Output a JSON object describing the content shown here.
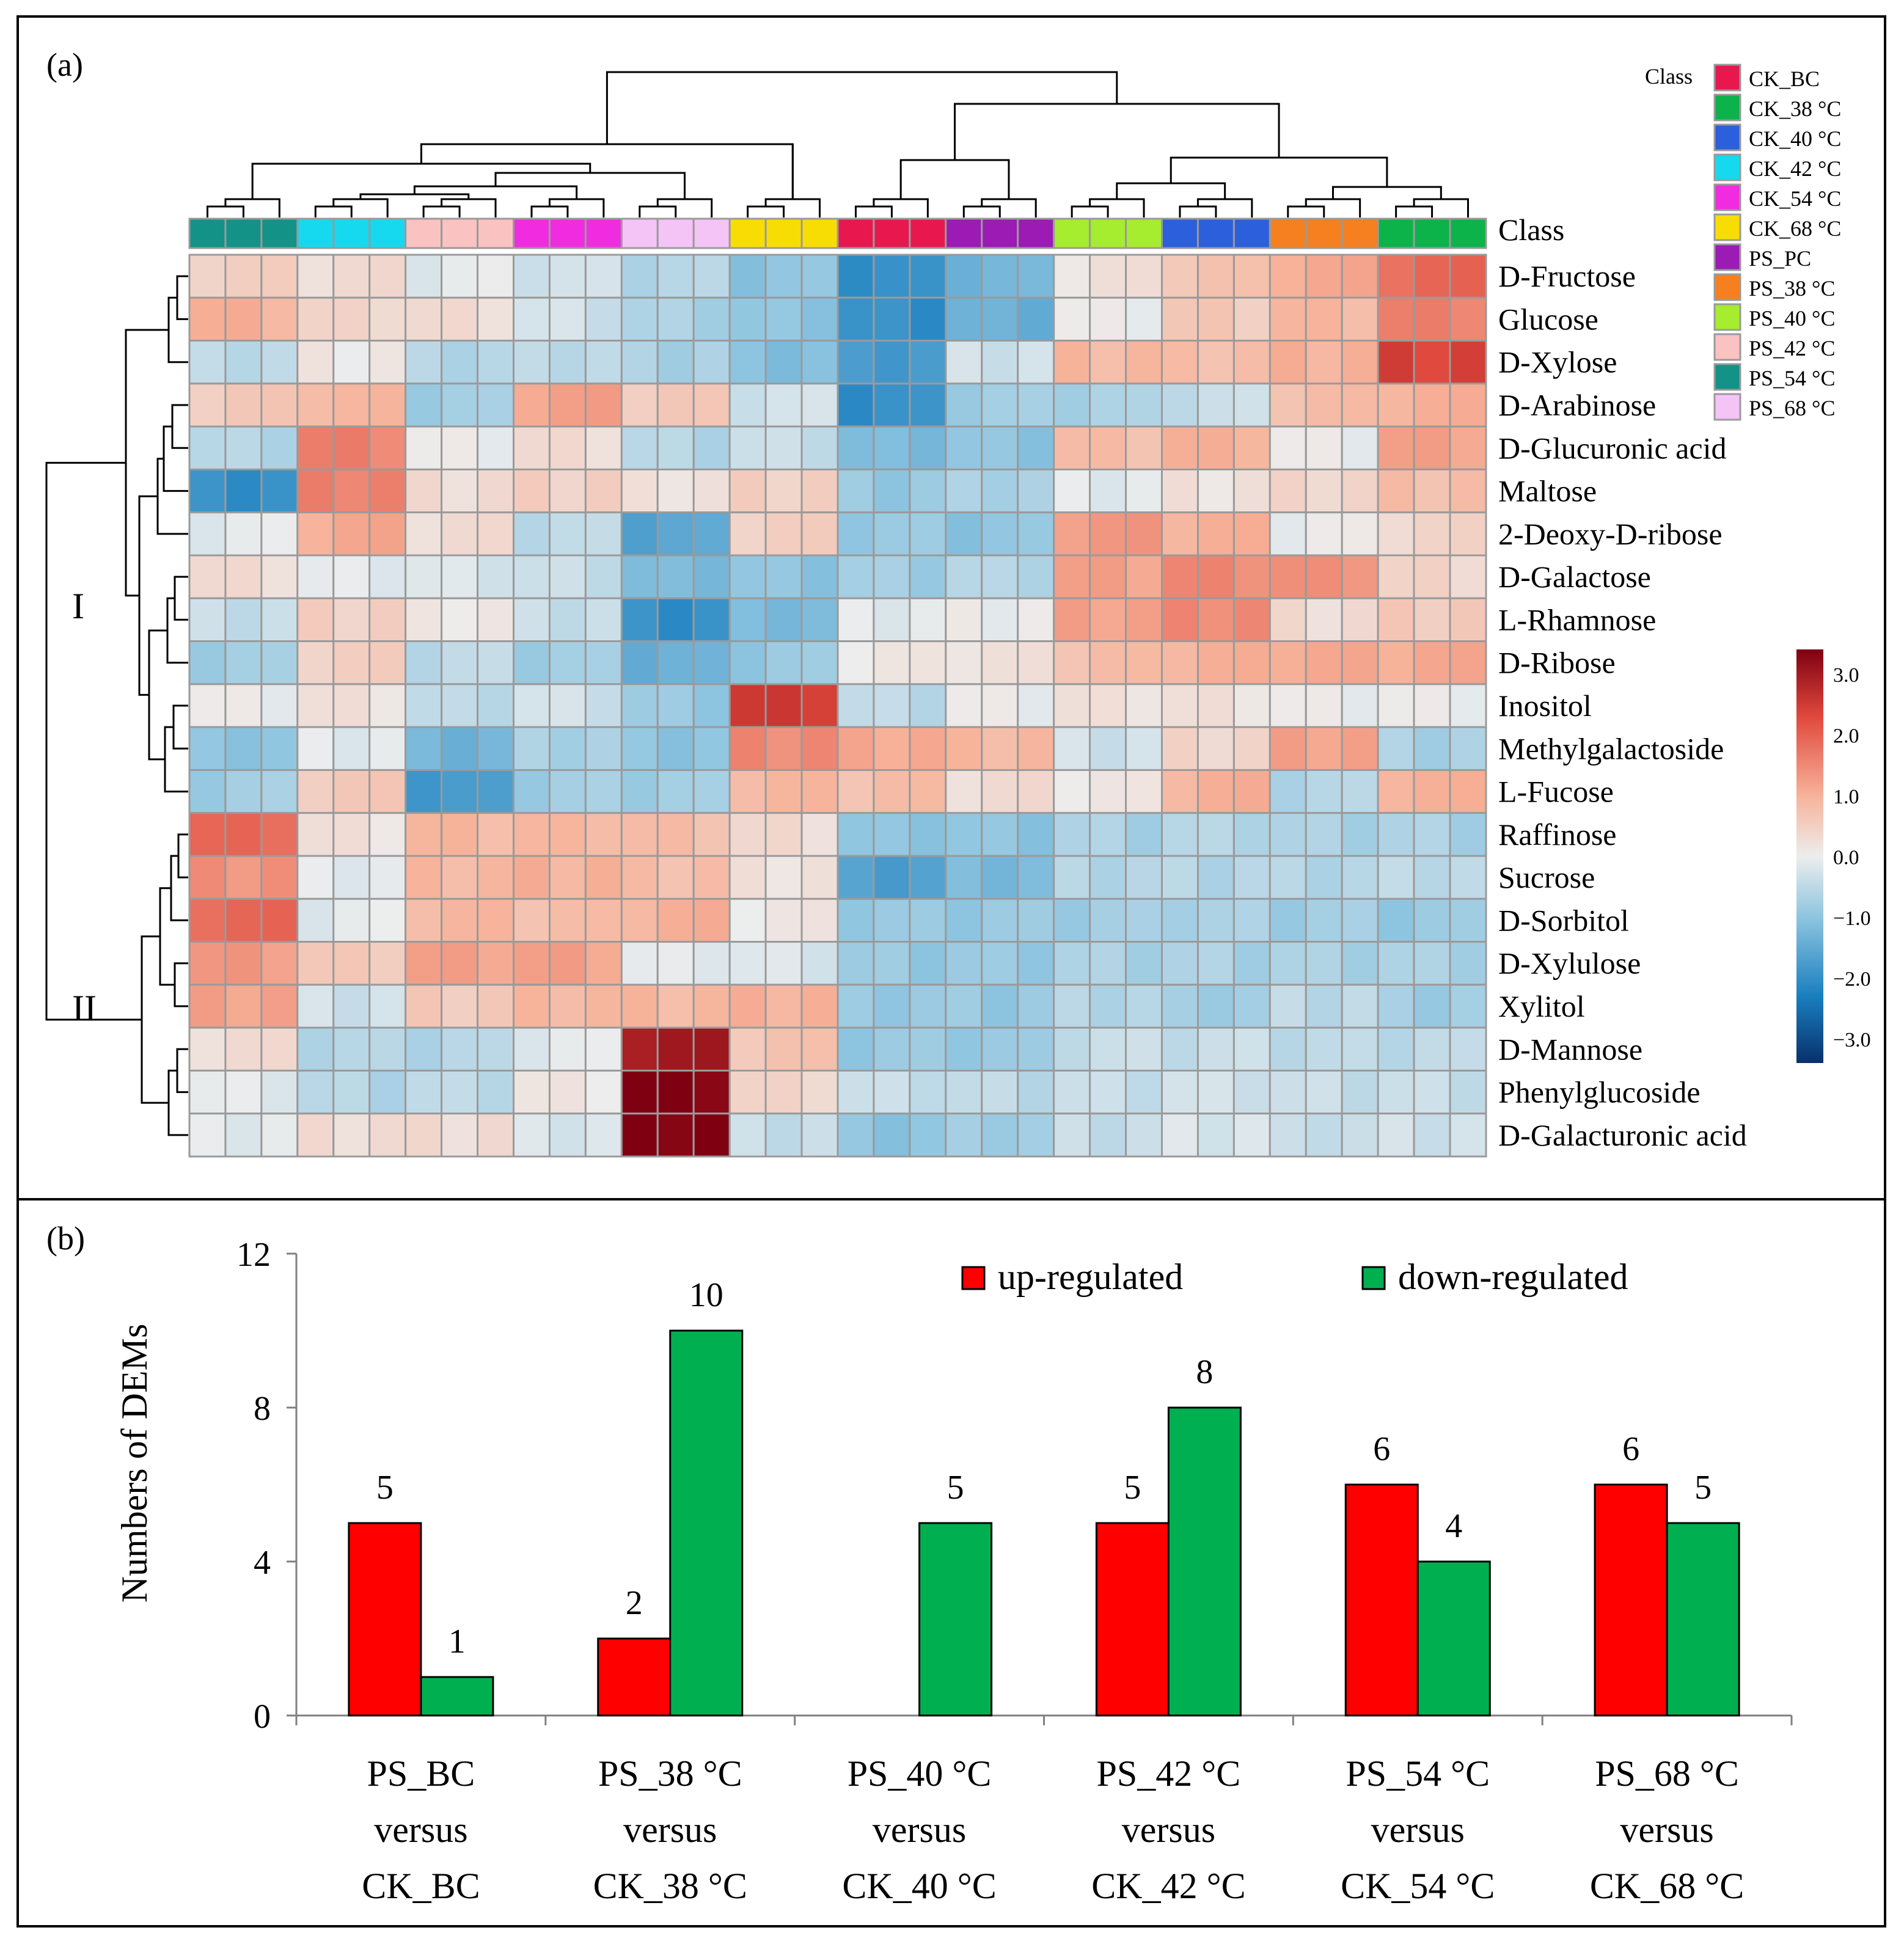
{
  "chart_data": [
    {
      "type": "heatmap",
      "panel_label": "(a)",
      "class_header": "Class",
      "row_labels": [
        "D-Fructose",
        "Glucose",
        "D-Xylose",
        "D-Arabinose",
        "D-Glucuronic acid",
        "Maltose",
        "2-Deoxy-D-ribose",
        "D-Galactose",
        "L-Rhamnose",
        "D-Ribose",
        "Inositol",
        "Methylgalactoside",
        "L-Fucose",
        "Raffinose",
        "Sucrose",
        "D-Sorbitol",
        "D-Xylulose",
        "Xylitol",
        "D-Mannose",
        "Phenylglucoside",
        "D-Galacturonic acid"
      ],
      "column_groups": [
        "PS_54 °C",
        "CK_42 °C",
        "PS_42 °C",
        "CK_54 °C",
        "PS_68 °C",
        "CK_68 °C",
        "CK_BC",
        "PS_PC",
        "PS_40 °C",
        "CK_40 °C",
        "PS_38 °C",
        "CK_38 °C"
      ],
      "group_summary_values": [
        [
          0.5,
          1.0,
          -0.5,
          0.6,
          -0.6,
          -2.0,
          -0.1,
          0.3,
          -0.4,
          -0.8,
          0.0,
          -1.0,
          -0.8,
          1.9,
          1.4,
          1.9,
          1.3,
          1.2,
          0.3,
          -0.1,
          -0.1
        ],
        [
          0.3,
          0.4,
          0.1,
          0.9,
          1.6,
          1.6,
          1.1,
          -0.1,
          0.5,
          0.5,
          0.2,
          -0.1,
          0.6,
          0.2,
          -0.1,
          -0.1,
          0.6,
          -0.3,
          -0.6,
          -0.6,
          0.3
        ],
        [
          -0.1,
          0.3,
          -0.6,
          -0.8,
          0.0,
          0.3,
          0.3,
          -0.2,
          0.1,
          -0.5,
          -0.5,
          -1.3,
          -1.8,
          0.9,
          0.9,
          0.9,
          1.2,
          0.6,
          -0.6,
          -0.5,
          0.3
        ],
        [
          -0.3,
          -0.3,
          -0.5,
          1.2,
          0.3,
          0.5,
          -0.5,
          -0.4,
          -0.4,
          -0.8,
          -0.3,
          -0.7,
          -0.8,
          0.9,
          1.0,
          0.8,
          1.2,
          0.9,
          -0.1,
          0.1,
          -0.2
        ],
        [
          -0.6,
          -0.7,
          -0.7,
          0.6,
          -0.6,
          0.2,
          -1.6,
          -1.2,
          -2.0,
          -1.4,
          -0.9,
          -1.0,
          -0.8,
          0.8,
          0.8,
          1.0,
          -0.1,
          0.9,
          3.0,
          3.4,
          3.4
        ],
        [
          -1.0,
          -1.0,
          -1.1,
          -0.3,
          -0.4,
          0.5,
          0.5,
          -1.0,
          -1.2,
          -0.9,
          2.5,
          1.5,
          0.9,
          0.3,
          0.2,
          0.1,
          -0.2,
          1.0,
          0.7,
          0.4,
          -0.4
        ],
        [
          -2.0,
          -2.0,
          -1.8,
          -2.0,
          -1.2,
          -0.9,
          -0.9,
          -0.8,
          -0.1,
          0.1,
          -0.5,
          1.1,
          0.8,
          -1.0,
          -1.7,
          -0.9,
          -0.9,
          -0.9,
          -0.9,
          -0.4,
          -1.0
        ],
        [
          -1.3,
          -1.4,
          -0.3,
          -0.8,
          -1.0,
          -0.7,
          -1.0,
          -0.6,
          0.0,
          0.2,
          0.0,
          0.9,
          0.3,
          -1.0,
          -1.2,
          -0.9,
          -0.9,
          -0.9,
          -0.9,
          -0.5,
          -0.8
        ],
        [
          0.2,
          0.0,
          0.9,
          -0.7,
          0.8,
          -0.1,
          1.3,
          1.2,
          1.2,
          0.8,
          0.2,
          -0.3,
          0.1,
          -0.7,
          -0.6,
          -0.8,
          -0.7,
          -0.6,
          -0.4,
          -0.4,
          -0.4
        ],
        [
          0.7,
          0.6,
          0.8,
          -0.4,
          1.0,
          0.2,
          1.0,
          1.5,
          1.5,
          1.0,
          0.2,
          0.4,
          1.0,
          -0.6,
          -0.6,
          -0.7,
          -0.7,
          -0.8,
          -0.4,
          -0.3,
          -0.2
        ],
        [
          1.1,
          0.9,
          1.0,
          0.8,
          0.0,
          0.4,
          0.0,
          1.4,
          0.3,
          1.1,
          0.0,
          1.2,
          -0.6,
          -0.7,
          -0.6,
          -0.8,
          -0.7,
          -0.5,
          -0.5,
          -0.4,
          -0.4
        ],
        [
          1.9,
          1.6,
          2.4,
          1.0,
          1.2,
          0.8,
          0.4,
          0.4,
          0.6,
          1.1,
          0.0,
          -0.7,
          1.0,
          -0.7,
          -0.5,
          -0.9,
          -0.7,
          -0.8,
          -0.5,
          -0.4,
          -0.3
        ]
      ],
      "row_clusters": [
        "I",
        "II"
      ],
      "legend": {
        "title": "Class",
        "items": [
          {
            "label": "CK_BC",
            "color": "#e8184e"
          },
          {
            "label": "CK_38 °C",
            "color": "#0cb34a"
          },
          {
            "label": "CK_40 °C",
            "color": "#2c5fdc"
          },
          {
            "label": "CK_42 °C",
            "color": "#16d9ef"
          },
          {
            "label": "CK_54 °C",
            "color": "#f12ce0"
          },
          {
            "label": "CK_68 °C",
            "color": "#f8dd05"
          },
          {
            "label": "PS_PC",
            "color": "#9b1bb4"
          },
          {
            "label": "PS_38 °C",
            "color": "#f6801f"
          },
          {
            "label": "PS_40 °C",
            "color": "#a6ec2f"
          },
          {
            "label": "PS_42 °C",
            "color": "#fbc2c2"
          },
          {
            "label": "PS_54 °C",
            "color": "#139287"
          },
          {
            "label": "PS_68 °C",
            "color": "#f5c4f7"
          }
        ]
      },
      "color_scale": {
        "range": [
          -3.4,
          3.4
        ],
        "ticks": [
          "3.0",
          "2.0",
          "1.0",
          "0.0",
          "−1.0",
          "−2.0",
          "−3.0"
        ],
        "tick_values": [
          3,
          2,
          1,
          0,
          -1,
          -2,
          -3
        ],
        "stops": [
          {
            "v": -3.4,
            "color": "#08306b"
          },
          {
            "v": -2.3,
            "color": "#1a7fbf"
          },
          {
            "v": -1.0,
            "color": "#8ec5e0"
          },
          {
            "v": 0,
            "color": "#ededed"
          },
          {
            "v": 1.0,
            "color": "#f7b299"
          },
          {
            "v": 2.3,
            "color": "#e0483c"
          },
          {
            "v": 3.4,
            "color": "#7f0011"
          }
        ]
      }
    },
    {
      "type": "bar",
      "panel_label": "(b)",
      "ylabel": "Numbers of DEMs",
      "ylim": [
        0,
        12
      ],
      "yticks": [
        "0",
        "4",
        "8",
        "12"
      ],
      "ytick_values": [
        0,
        4,
        8,
        12
      ],
      "categories": [
        [
          "PS_BC",
          "versus",
          "CK_BC"
        ],
        [
          "PS_38 °C",
          "versus",
          "CK_38 °C"
        ],
        [
          "PS_40 °C",
          "versus",
          "CK_40 °C"
        ],
        [
          "PS_42 °C",
          "versus",
          "CK_42 °C"
        ],
        [
          "PS_54 °C",
          "versus",
          "CK_54 °C"
        ],
        [
          "PS_68 °C",
          "versus",
          "CK_68 °C"
        ]
      ],
      "series": [
        {
          "name": "up-regulated",
          "color": "#ff0000",
          "values": [
            5,
            2,
            0,
            5,
            6,
            6
          ],
          "labels": [
            "5",
            "2",
            "",
            "5",
            "6",
            "6"
          ]
        },
        {
          "name": "down-regulated",
          "color": "#00b050",
          "values": [
            1,
            10,
            5,
            8,
            4,
            5
          ],
          "labels": [
            "1",
            "10",
            "5",
            "8",
            "4",
            "5"
          ]
        }
      ],
      "legend": "top-right"
    }
  ]
}
